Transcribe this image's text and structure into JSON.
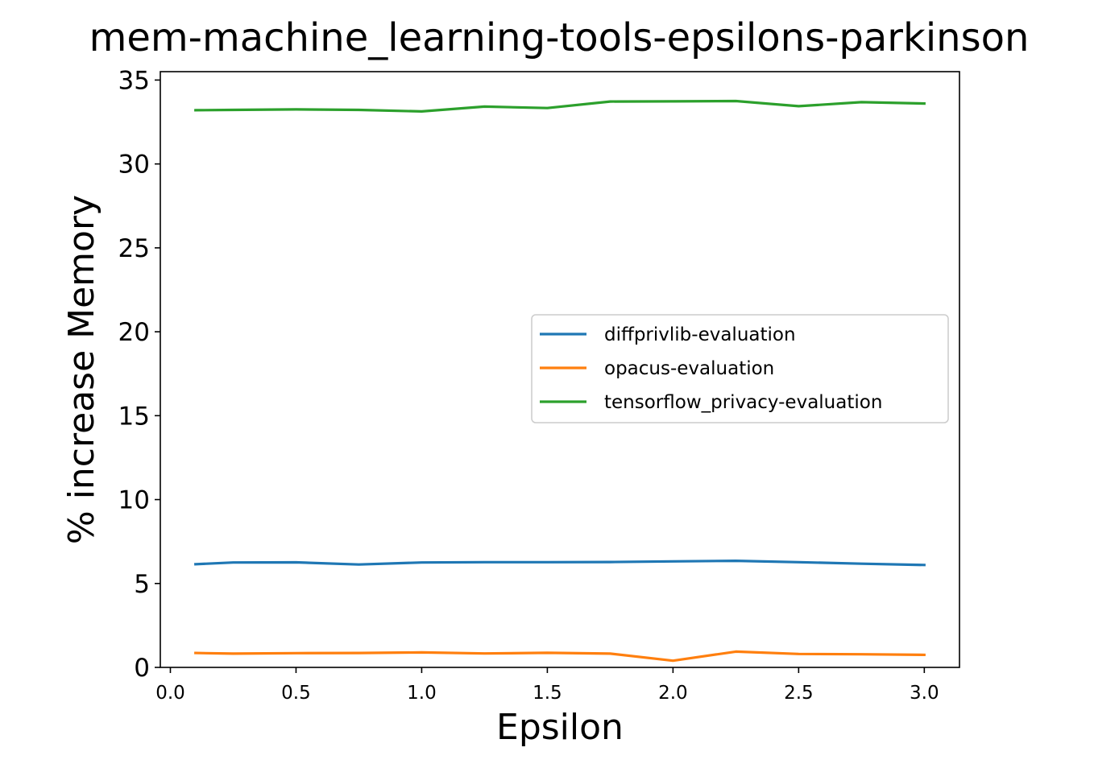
{
  "chart_data": {
    "type": "line",
    "title": "mem-machine_learning-tools-epsilons-parkinson",
    "xlabel": "Epsilon",
    "ylabel": "% increase Memory",
    "xlim": [
      -0.04,
      3.14
    ],
    "ylim": [
      0,
      35.5
    ],
    "xticks": [
      0.0,
      0.5,
      1.0,
      1.5,
      2.0,
      2.5,
      3.0
    ],
    "xtick_labels": [
      "0.0",
      "0.5",
      "1.0",
      "1.5",
      "2.0",
      "2.5",
      "3.0"
    ],
    "yticks": [
      0,
      5,
      10,
      15,
      20,
      25,
      30,
      35
    ],
    "ytick_labels": [
      "0",
      "5",
      "10",
      "15",
      "20",
      "25",
      "30",
      "35"
    ],
    "grid": false,
    "legend_position": "center-right",
    "x": [
      0.1,
      0.25,
      0.5,
      0.75,
      1.0,
      1.25,
      1.5,
      1.75,
      2.0,
      2.25,
      2.5,
      2.75,
      3.0
    ],
    "series": [
      {
        "name": "diffprivlib-evaluation",
        "color": "#1f77b4",
        "values": [
          6.15,
          6.25,
          6.26,
          6.13,
          6.25,
          6.27,
          6.27,
          6.28,
          6.32,
          6.35,
          6.27,
          6.18,
          6.1
        ]
      },
      {
        "name": "opacus-evaluation",
        "color": "#ff7f0e",
        "values": [
          0.86,
          0.82,
          0.85,
          0.86,
          0.89,
          0.83,
          0.87,
          0.82,
          0.4,
          0.94,
          0.8,
          0.78,
          0.75
        ]
      },
      {
        "name": "tensorflow_privacy-evaluation",
        "color": "#2ca02c",
        "values": [
          33.2,
          33.22,
          33.25,
          33.22,
          33.13,
          33.42,
          33.33,
          33.72,
          33.73,
          33.75,
          33.44,
          33.68,
          33.6
        ]
      }
    ]
  }
}
